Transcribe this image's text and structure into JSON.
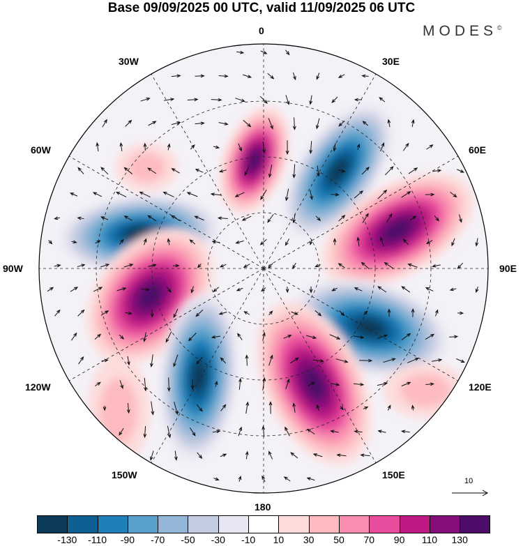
{
  "title": "Base 09/09/2025 00 UTC, valid 11/09/2025 06 UTC",
  "logo": "MODES",
  "logo_mark": "©",
  "longitude_labels": {
    "n": "0",
    "ne": "30E",
    "e60": "60E",
    "e": "90E",
    "se120": "120E",
    "se": "150E",
    "s": "180",
    "sw": "150W",
    "w120": "120W",
    "w": "90W",
    "w60": "60W",
    "nw": "30W"
  },
  "reference_vector": "10",
  "colorbar": {
    "colors": [
      "#0c3a59",
      "#0d5f94",
      "#1f7fb8",
      "#58a1cb",
      "#93b6d8",
      "#c3cbe0",
      "#e8e6f2",
      "#ffffff",
      "#fddcdc",
      "#fdbbbf",
      "#f98db0",
      "#e84c9c",
      "#bf1a84",
      "#870d78",
      "#4d0c6a"
    ],
    "ticks": [
      "-130",
      "-110",
      "-90",
      "-70",
      "-50",
      "-30",
      "-10",
      "10",
      "30",
      "50",
      "70",
      "90",
      "110",
      "130"
    ]
  }
}
